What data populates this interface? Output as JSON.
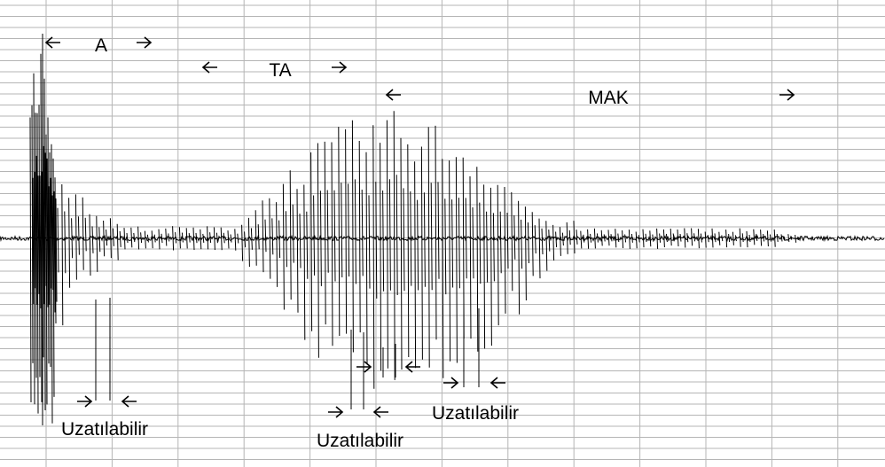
{
  "syllables": [
    "A",
    "TA",
    "MAK"
  ],
  "notes": [
    "Uzatılabilir",
    "Uzatılabilir",
    "Uzatılabilir"
  ]
}
